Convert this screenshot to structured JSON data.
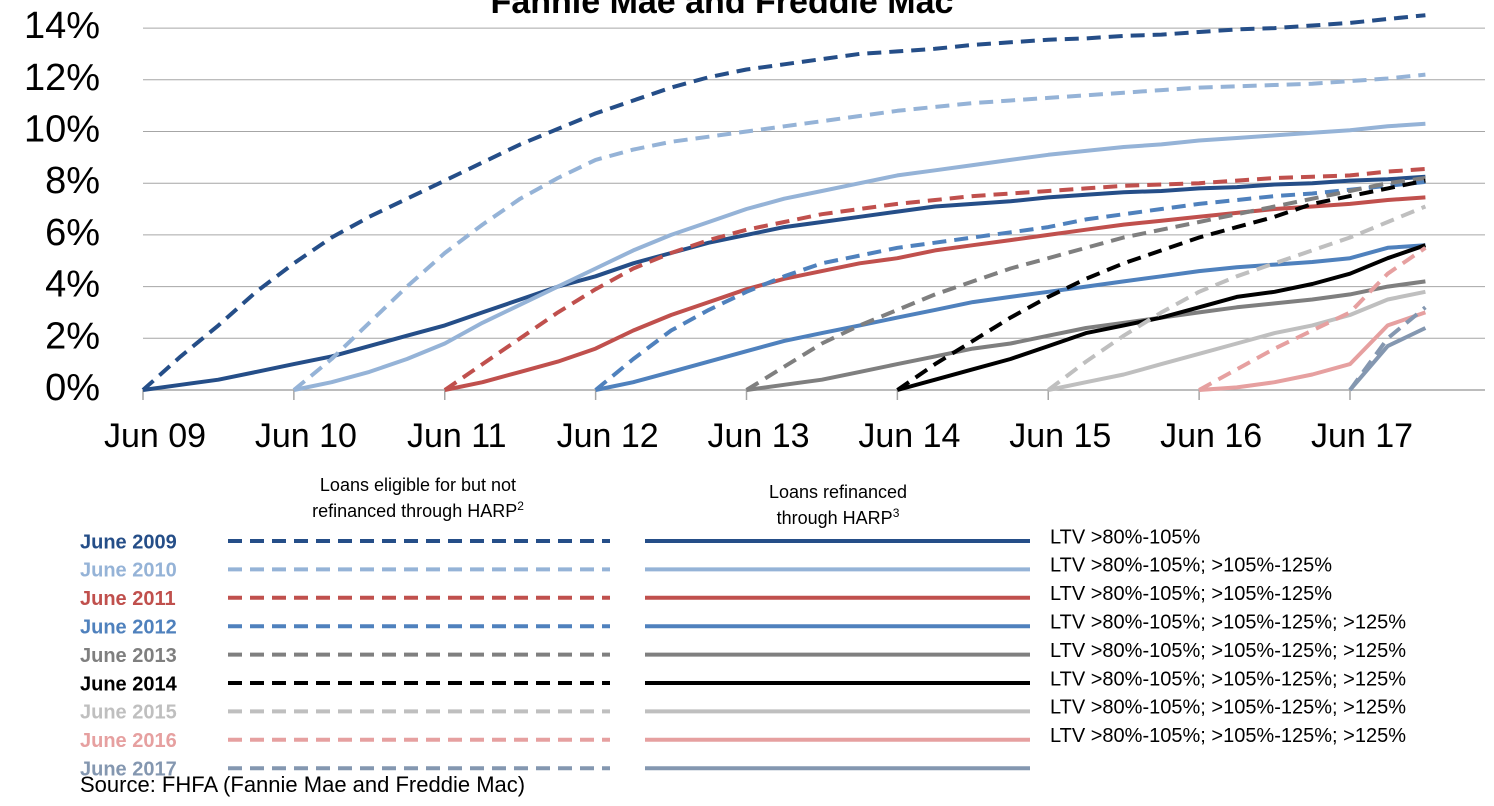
{
  "chart_data": {
    "type": "line",
    "title": "Fannie Mae and Freddie Mac",
    "x": [
      "Jun 09",
      "Sep 09",
      "Dec 09",
      "Mar 10",
      "Jun 10",
      "Sep 10",
      "Dec 10",
      "Mar 11",
      "Jun 11",
      "Sep 11",
      "Dec 11",
      "Mar 12",
      "Jun 12",
      "Sep 12",
      "Dec 12",
      "Mar 13",
      "Jun 13",
      "Sep 13",
      "Dec 13",
      "Mar 14",
      "Jun 14",
      "Sep 14",
      "Dec 14",
      "Mar 15",
      "Jun 15",
      "Sep 15",
      "Dec 15",
      "Mar 16",
      "Jun 16",
      "Sep 16",
      "Dec 16",
      "Mar 17",
      "Jun 17",
      "Sep 17",
      "Dec 17"
    ],
    "xticks": [
      "Jun 09",
      "Jun 10",
      "Jun 11",
      "Jun 12",
      "Jun 13",
      "Jun 14",
      "Jun 15",
      "Jun 16",
      "Jun 17"
    ],
    "ylim": [
      0,
      14.7
    ],
    "yticks": [
      {
        "value": 0,
        "label": "0%"
      },
      {
        "value": 2,
        "label": "2%"
      },
      {
        "value": 4,
        "label": "4%"
      },
      {
        "value": 6,
        "label": "6%"
      },
      {
        "value": 8,
        "label": "8%"
      },
      {
        "value": 10,
        "label": "10%"
      },
      {
        "value": 12,
        "label": "12%"
      },
      {
        "value": 14,
        "label": "14%"
      }
    ],
    "grid": true,
    "legend": {
      "eligible_header": "Loans eligible for but not refinanced through HARP",
      "eligible_note": "2",
      "refinanced_header": "Loans refinanced through HARP",
      "refinanced_note": "3"
    },
    "series": [
      {
        "name": "June 2009",
        "color": "#254e88",
        "ltv": "LTV >80%-105%",
        "eligible": [
          0,
          1.3,
          2.5,
          3.8,
          4.9,
          5.9,
          6.7,
          7.4,
          8.1,
          8.8,
          9.5,
          10.1,
          10.7,
          11.2,
          11.7,
          12.1,
          12.4,
          12.6,
          12.8,
          13.0,
          13.1,
          13.2,
          13.35,
          13.45,
          13.55,
          13.6,
          13.7,
          13.75,
          13.85,
          13.95,
          14.0,
          14.1,
          14.2,
          14.35,
          14.5
        ],
        "refinanced": [
          0,
          0.2,
          0.4,
          0.7,
          1.0,
          1.3,
          1.7,
          2.1,
          2.5,
          3.0,
          3.5,
          4.0,
          4.4,
          4.9,
          5.3,
          5.7,
          6.0,
          6.3,
          6.5,
          6.7,
          6.9,
          7.1,
          7.2,
          7.3,
          7.45,
          7.55,
          7.65,
          7.7,
          7.8,
          7.85,
          7.95,
          8.0,
          8.1,
          8.15,
          8.25
        ]
      },
      {
        "name": "June 2010",
        "color": "#95b3d7",
        "ltv": "LTV >80%-105%; >105%-125%",
        "eligible": [
          null,
          null,
          null,
          null,
          0,
          1.2,
          2.6,
          4.0,
          5.3,
          6.4,
          7.4,
          8.2,
          8.9,
          9.3,
          9.6,
          9.8,
          10.0,
          10.2,
          10.4,
          10.6,
          10.8,
          10.95,
          11.1,
          11.2,
          11.3,
          11.4,
          11.5,
          11.6,
          11.7,
          11.75,
          11.8,
          11.85,
          11.95,
          12.05,
          12.2
        ],
        "refinanced": [
          null,
          null,
          null,
          null,
          0,
          0.3,
          0.7,
          1.2,
          1.8,
          2.6,
          3.3,
          4.0,
          4.7,
          5.4,
          6.0,
          6.5,
          7.0,
          7.4,
          7.7,
          8.0,
          8.3,
          8.5,
          8.7,
          8.9,
          9.1,
          9.25,
          9.4,
          9.5,
          9.65,
          9.75,
          9.85,
          9.95,
          10.05,
          10.2,
          10.3
        ]
      },
      {
        "name": "June 2011",
        "color": "#c0504d",
        "ltv": "LTV >80%-105%; >105%-125%",
        "eligible": [
          null,
          null,
          null,
          null,
          null,
          null,
          null,
          null,
          0,
          1.0,
          2.0,
          3.0,
          3.9,
          4.7,
          5.3,
          5.8,
          6.2,
          6.5,
          6.8,
          7.0,
          7.2,
          7.35,
          7.5,
          7.6,
          7.7,
          7.8,
          7.9,
          7.95,
          8.0,
          8.1,
          8.2,
          8.25,
          8.3,
          8.45,
          8.55
        ],
        "refinanced": [
          null,
          null,
          null,
          null,
          null,
          null,
          null,
          null,
          0,
          0.3,
          0.7,
          1.1,
          1.6,
          2.3,
          2.9,
          3.4,
          3.9,
          4.3,
          4.6,
          4.9,
          5.1,
          5.4,
          5.6,
          5.8,
          6.0,
          6.2,
          6.4,
          6.55,
          6.7,
          6.85,
          7.0,
          7.1,
          7.2,
          7.35,
          7.45
        ]
      },
      {
        "name": "June 2012",
        "color": "#4f81bd",
        "ltv": "LTV >80%-105%; >105%-125%; >125%",
        "eligible": [
          null,
          null,
          null,
          null,
          null,
          null,
          null,
          null,
          null,
          null,
          null,
          null,
          0,
          1.2,
          2.3,
          3.1,
          3.8,
          4.4,
          4.9,
          5.2,
          5.5,
          5.7,
          5.9,
          6.1,
          6.3,
          6.6,
          6.8,
          7.0,
          7.2,
          7.35,
          7.5,
          7.6,
          7.75,
          7.9,
          8.05
        ],
        "refinanced": [
          null,
          null,
          null,
          null,
          null,
          null,
          null,
          null,
          null,
          null,
          null,
          null,
          0,
          0.3,
          0.7,
          1.1,
          1.5,
          1.9,
          2.2,
          2.5,
          2.8,
          3.1,
          3.4,
          3.6,
          3.8,
          4.0,
          4.2,
          4.4,
          4.6,
          4.75,
          4.85,
          4.95,
          5.1,
          5.5,
          5.6
        ]
      },
      {
        "name": "June 2013",
        "color": "#7f7f7f",
        "ltv": "LTV >80%-105%; >105%-125%; >125%",
        "eligible": [
          null,
          null,
          null,
          null,
          null,
          null,
          null,
          null,
          null,
          null,
          null,
          null,
          null,
          null,
          null,
          null,
          0,
          0.9,
          1.8,
          2.5,
          3.1,
          3.7,
          4.2,
          4.7,
          5.1,
          5.5,
          5.9,
          6.2,
          6.5,
          6.8,
          7.1,
          7.4,
          7.7,
          8.0,
          8.2
        ],
        "refinanced": [
          null,
          null,
          null,
          null,
          null,
          null,
          null,
          null,
          null,
          null,
          null,
          null,
          null,
          null,
          null,
          null,
          0,
          0.2,
          0.4,
          0.7,
          1.0,
          1.3,
          1.6,
          1.8,
          2.1,
          2.4,
          2.6,
          2.8,
          3.0,
          3.2,
          3.35,
          3.5,
          3.7,
          4.0,
          4.2
        ]
      },
      {
        "name": "June 2014",
        "color": "#000000",
        "ltv": "LTV >80%-105%; >105%-125%; >125%",
        "eligible": [
          null,
          null,
          null,
          null,
          null,
          null,
          null,
          null,
          null,
          null,
          null,
          null,
          null,
          null,
          null,
          null,
          null,
          null,
          null,
          null,
          0,
          1.0,
          1.9,
          2.8,
          3.6,
          4.3,
          4.9,
          5.4,
          5.9,
          6.3,
          6.7,
          7.2,
          7.5,
          7.8,
          8.1
        ],
        "refinanced": [
          null,
          null,
          null,
          null,
          null,
          null,
          null,
          null,
          null,
          null,
          null,
          null,
          null,
          null,
          null,
          null,
          null,
          null,
          null,
          null,
          0,
          0.4,
          0.8,
          1.2,
          1.7,
          2.2,
          2.5,
          2.8,
          3.2,
          3.6,
          3.8,
          4.1,
          4.5,
          5.1,
          5.6
        ]
      },
      {
        "name": "June 2015",
        "color": "#bfbfbf",
        "ltv": "LTV >80%-105%; >105%-125%; >125%",
        "eligible": [
          null,
          null,
          null,
          null,
          null,
          null,
          null,
          null,
          null,
          null,
          null,
          null,
          null,
          null,
          null,
          null,
          null,
          null,
          null,
          null,
          null,
          null,
          null,
          null,
          0,
          1.1,
          2.1,
          3.0,
          3.8,
          4.4,
          4.9,
          5.4,
          5.9,
          6.5,
          7.1
        ],
        "refinanced": [
          null,
          null,
          null,
          null,
          null,
          null,
          null,
          null,
          null,
          null,
          null,
          null,
          null,
          null,
          null,
          null,
          null,
          null,
          null,
          null,
          null,
          null,
          null,
          null,
          0,
          0.3,
          0.6,
          1.0,
          1.4,
          1.8,
          2.2,
          2.5,
          2.9,
          3.5,
          3.8
        ]
      },
      {
        "name": "June 2016",
        "color": "#e6a0a0",
        "ltv": "LTV >80%-105%; >105%-125%; >125%",
        "eligible": [
          null,
          null,
          null,
          null,
          null,
          null,
          null,
          null,
          null,
          null,
          null,
          null,
          null,
          null,
          null,
          null,
          null,
          null,
          null,
          null,
          null,
          null,
          null,
          null,
          null,
          null,
          null,
          null,
          0,
          0.8,
          1.6,
          2.3,
          3.0,
          4.5,
          5.5
        ],
        "refinanced": [
          null,
          null,
          null,
          null,
          null,
          null,
          null,
          null,
          null,
          null,
          null,
          null,
          null,
          null,
          null,
          null,
          null,
          null,
          null,
          null,
          null,
          null,
          null,
          null,
          null,
          null,
          null,
          null,
          0,
          0.1,
          0.3,
          0.6,
          1.0,
          2.5,
          3.0
        ]
      },
      {
        "name": "June 2017",
        "color": "#8497b0",
        "eligible": [
          null,
          null,
          null,
          null,
          null,
          null,
          null,
          null,
          null,
          null,
          null,
          null,
          null,
          null,
          null,
          null,
          null,
          null,
          null,
          null,
          null,
          null,
          null,
          null,
          null,
          null,
          null,
          null,
          null,
          null,
          null,
          null,
          0,
          2.0,
          3.2
        ],
        "refinanced": [
          null,
          null,
          null,
          null,
          null,
          null,
          null,
          null,
          null,
          null,
          null,
          null,
          null,
          null,
          null,
          null,
          null,
          null,
          null,
          null,
          null,
          null,
          null,
          null,
          null,
          null,
          null,
          null,
          null,
          null,
          null,
          null,
          0,
          1.7,
          2.4
        ]
      }
    ],
    "source": "Source: FHFA (Fannie Mae and Freddie Mac)"
  }
}
